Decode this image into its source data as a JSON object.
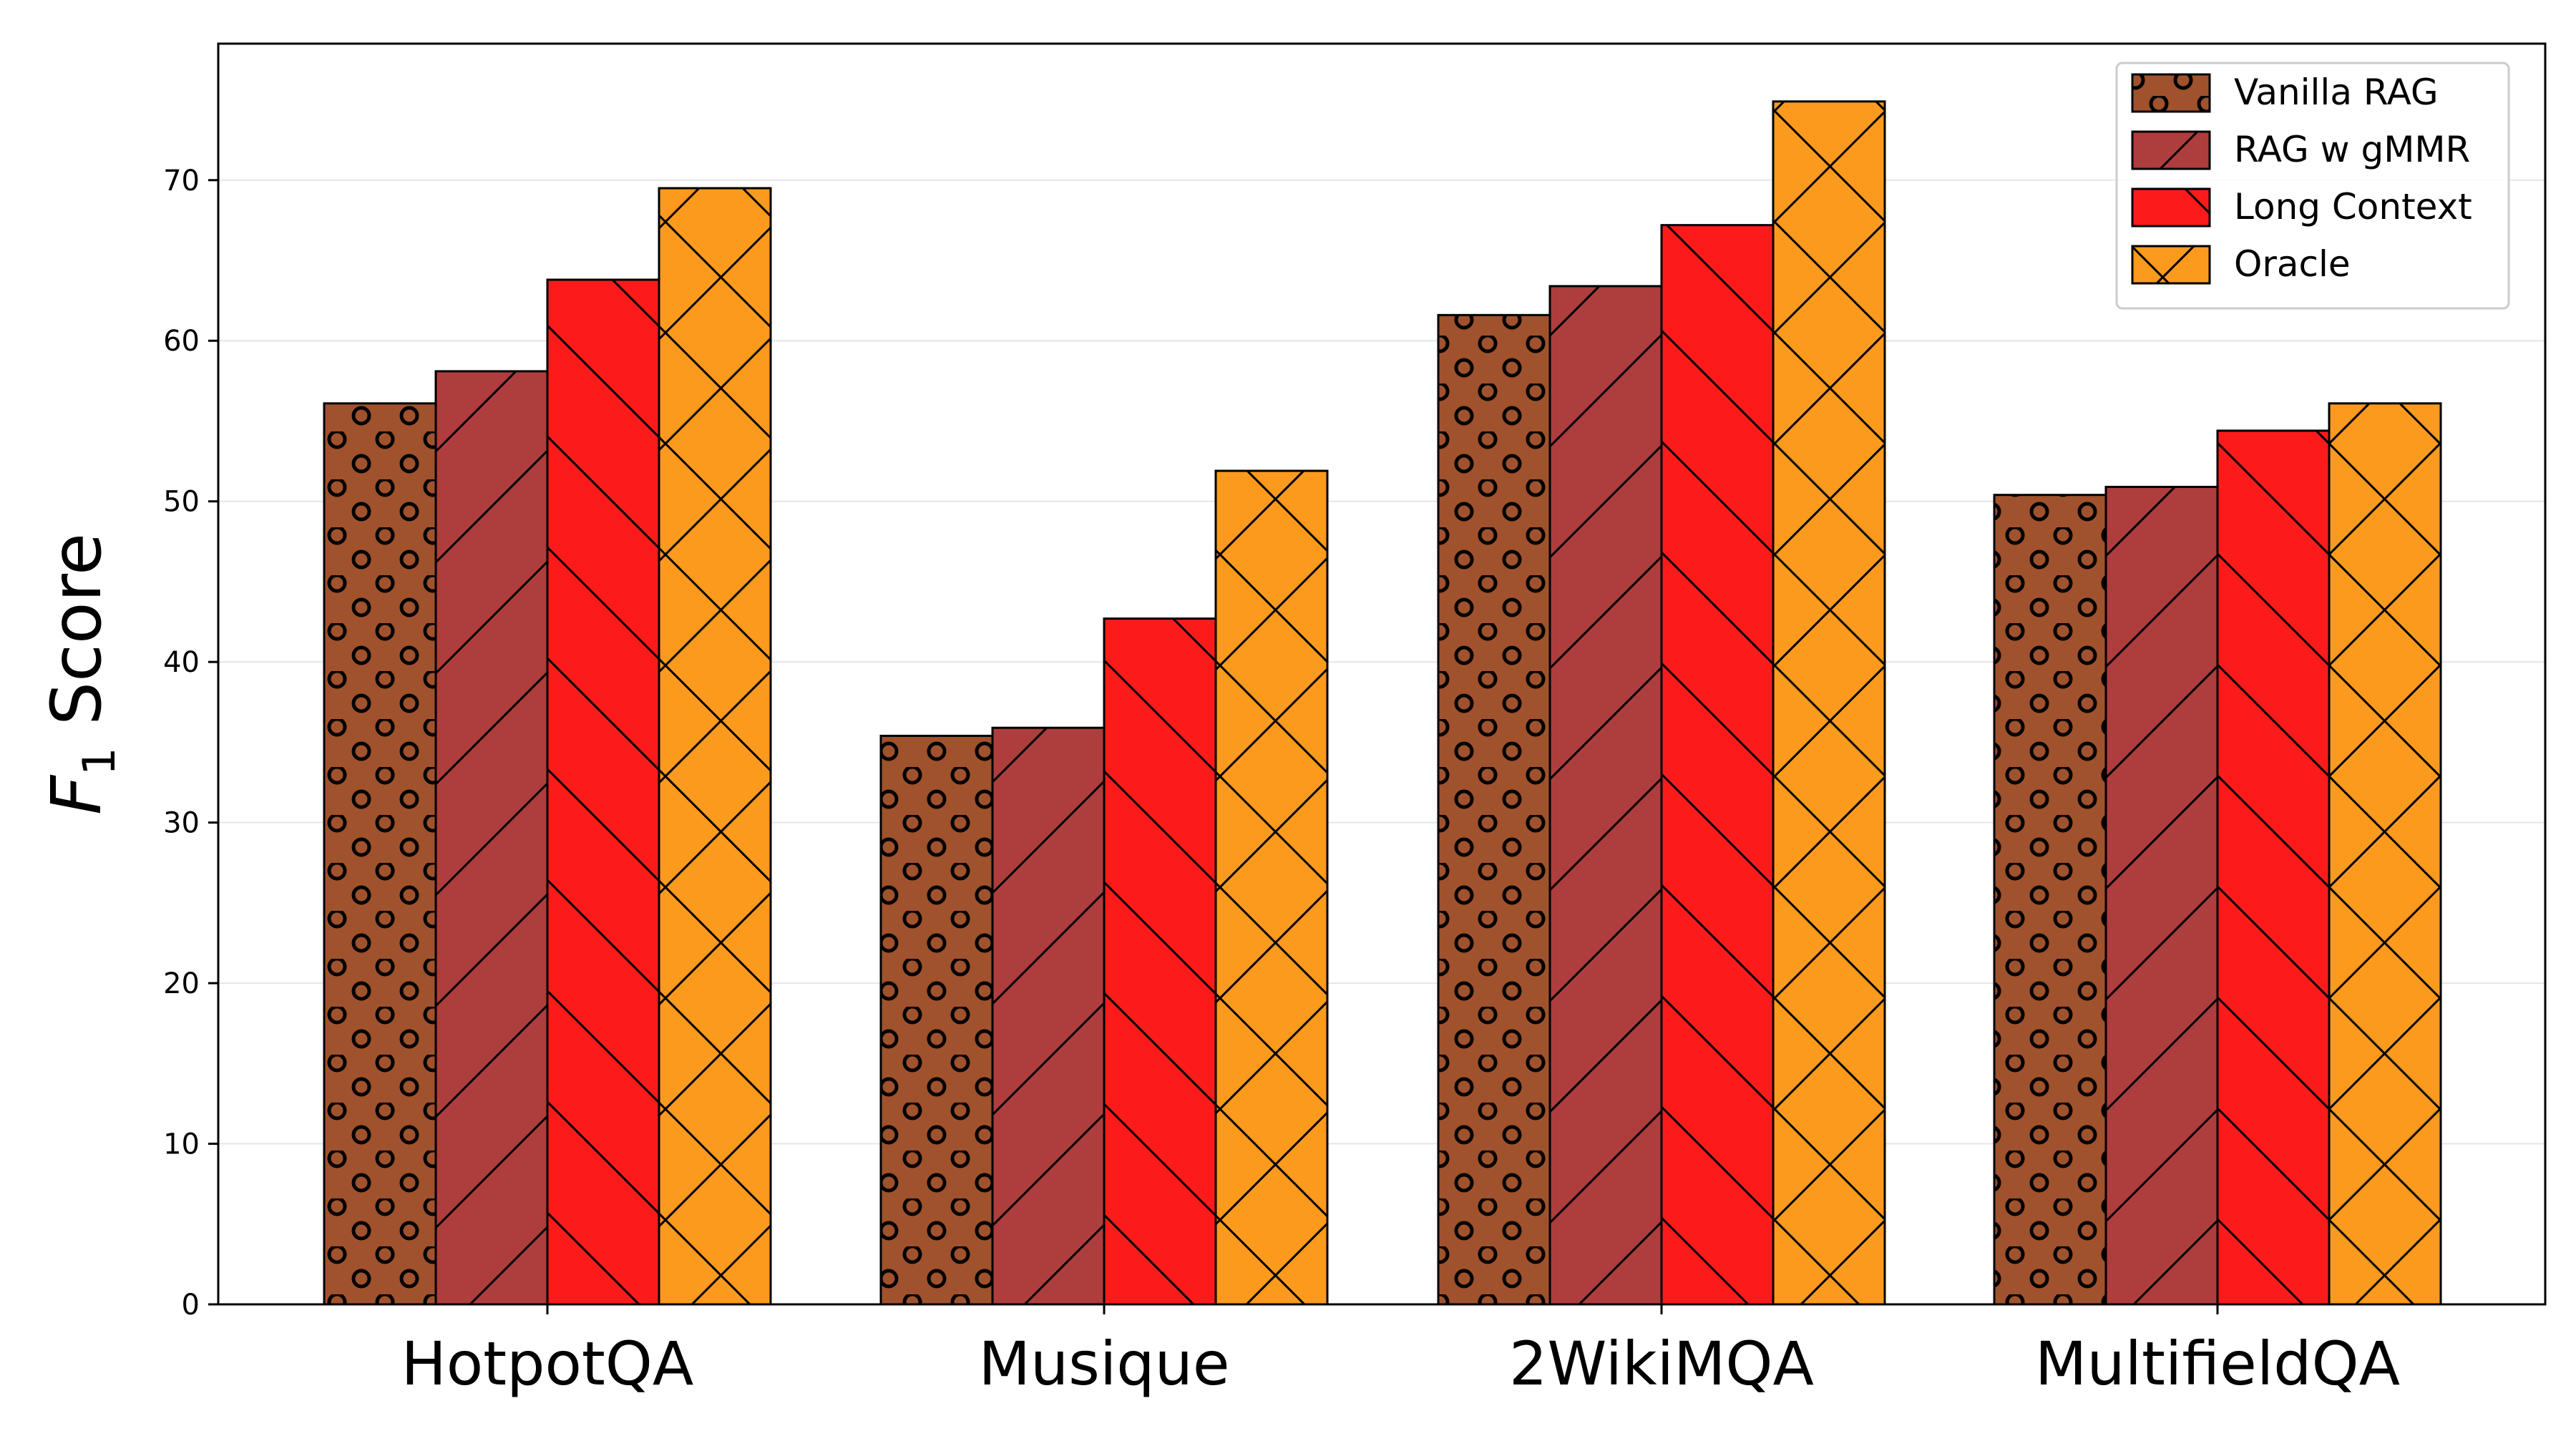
{
  "chart_data": {
    "type": "bar",
    "title": "",
    "xlabel": "",
    "ylabel": {
      "main": "F",
      "sub": "1",
      "rest": " Score"
    },
    "ylim": [
      0,
      78.5
    ],
    "yticks": [
      0,
      10,
      20,
      30,
      40,
      50,
      60,
      70
    ],
    "grid": "horizontal",
    "legend_position": "top-right",
    "categories": [
      "HotpotQA",
      "Musique",
      "2WikiMQA",
      "MultifieldQA"
    ],
    "series": [
      {
        "name": "Vanilla RAG",
        "color": "#a0522d",
        "hatch": "circles",
        "values": [
          56.1,
          35.4,
          61.6,
          50.4
        ]
      },
      {
        "name": "RAG w gMMR",
        "color": "#ae3d3d",
        "hatch": "diagonal",
        "values": [
          58.1,
          35.9,
          63.4,
          50.9
        ]
      },
      {
        "name": "Long Context",
        "color": "#fc1b1b",
        "hatch": "backdiagonal",
        "values": [
          63.8,
          42.7,
          67.2,
          54.4
        ]
      },
      {
        "name": "Oracle",
        "color": "#fc9a1e",
        "hatch": "crosshatch",
        "values": [
          69.5,
          51.9,
          74.9,
          56.1
        ]
      }
    ]
  }
}
